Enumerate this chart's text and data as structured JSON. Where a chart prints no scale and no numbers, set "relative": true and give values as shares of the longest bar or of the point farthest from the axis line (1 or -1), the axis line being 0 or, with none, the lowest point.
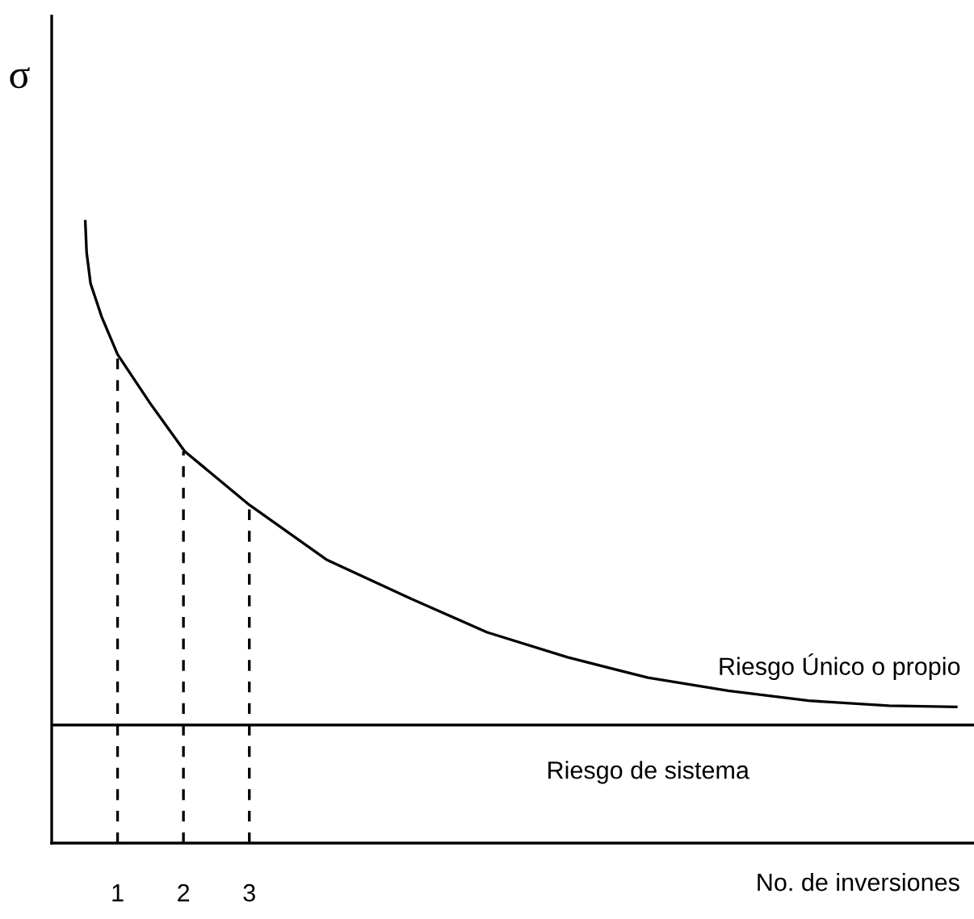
{
  "chart_data": {
    "type": "line",
    "relative": true,
    "xlabel": "No. de inversiones",
    "ylabel": "σ",
    "xlim": [
      0,
      14
    ],
    "xticks": [
      1,
      2,
      3
    ],
    "grid": false,
    "legend": false,
    "marker": "none",
    "series": [
      {
        "color": "#000000",
        "line_style": "solid",
        "x": [
          0.51,
          0.53,
          0.59,
          0.76,
          1,
          1.49,
          2.02,
          3.0,
          4.17,
          5.39,
          6.61,
          7.83,
          9.05,
          10.27,
          11.49,
          12.71,
          13.73
        ],
        "values": [
          1.0,
          0.95,
          0.9,
          0.846,
          0.786,
          0.708,
          0.63,
          0.544,
          0.456,
          0.396,
          0.339,
          0.299,
          0.266,
          0.245,
          0.229,
          0.221,
          0.219
        ]
      },
      {
        "color": "#000000",
        "line_style": "solid",
        "x": [
          0,
          14
        ],
        "values": [
          0.19,
          0.19
        ]
      },
      {
        "color": "#000000",
        "line_style": "dashed",
        "x": [
          1,
          1
        ],
        "values": [
          0,
          0.786
        ]
      },
      {
        "color": "#000000",
        "line_style": "dashed",
        "x": [
          2,
          2
        ],
        "values": [
          0,
          0.63
        ]
      },
      {
        "color": "#000000",
        "line_style": "dashed",
        "x": [
          3,
          3
        ],
        "values": [
          0,
          0.544
        ]
      }
    ],
    "annotations": [
      {
        "text": "Riesgo Único o propio",
        "x": 13.73,
        "y": 0.219
      },
      {
        "text": "Riesgo de sistema",
        "x": 9.05,
        "y": 0.19
      }
    ]
  }
}
